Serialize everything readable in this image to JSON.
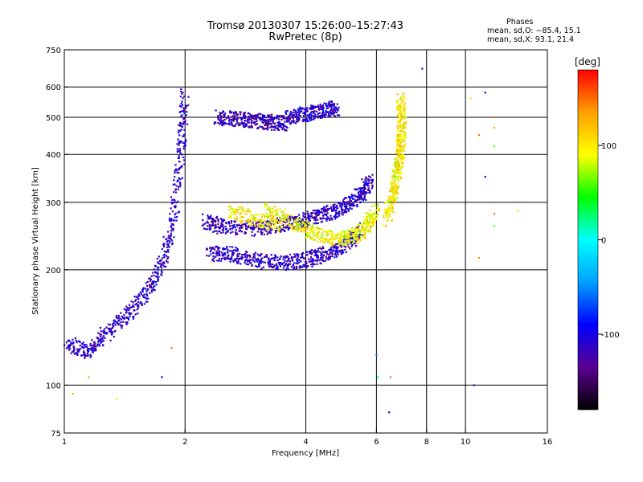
{
  "title": "Tromsø 20130307 15:26:00–15:27:43",
  "subtitle": "RwPretec (8p)",
  "phase_box": {
    "heading": "Phases",
    "line_o": "mean, sd,O: −85.4, 15.1",
    "line_x": "mean, sd,X: 93.1, 21.4"
  },
  "chart_data": {
    "type": "scatter",
    "title": "Tromsø 20130307 15:26:00–15:27:43",
    "subtitle": "RwPretec (8p)",
    "xlabel": "Frequency [MHz]",
    "ylabel": "Stationary phase Virtual Height [km]",
    "x_scale": "log",
    "y_scale": "log",
    "xlim": [
      1,
      16
    ],
    "ylim": [
      75,
      750
    ],
    "x_ticks": [
      1,
      2,
      4,
      6,
      8,
      10,
      16
    ],
    "y_ticks": [
      75,
      100,
      200,
      300,
      400,
      500,
      600,
      750
    ],
    "x_grid_lines": [
      2,
      4,
      6,
      8,
      10
    ],
    "y_grid_lines": [
      100,
      200,
      300,
      400,
      500,
      600
    ],
    "grid": true,
    "colorbar": {
      "label": "[deg]",
      "ticks": [
        100,
        0,
        -100
      ],
      "range": [
        -180,
        180
      ],
      "colors": [
        "#000000",
        "#5a0090",
        "#0000ff",
        "#00a0ff",
        "#00ffff",
        "#00ff00",
        "#ffff00",
        "#ffa000",
        "#ff0000"
      ]
    },
    "traces": [
      {
        "x": [
          1.0,
          1.15,
          1.3,
          1.5,
          1.7,
          1.85,
          1.95,
          2.0
        ],
        "y": [
          130,
          122,
          140,
          160,
          190,
          250,
          400,
          580
        ],
        "phase": -110
      },
      {
        "x": [
          2.25,
          2.5,
          3.0,
          3.5,
          4.0,
          4.5,
          5.0,
          5.5,
          5.8
        ],
        "y": [
          268,
          258,
          256,
          262,
          270,
          280,
          292,
          315,
          345
        ],
        "phase": -115
      },
      {
        "x": [
          2.3,
          2.6,
          3.0,
          3.5,
          4.0,
          4.5,
          5.0,
          5.5
        ],
        "y": [
          220,
          220,
          212,
          208,
          212,
          220,
          232,
          255
        ],
        "phase": -110
      },
      {
        "x": [
          2.4,
          2.7,
          3.0,
          3.3,
          3.6
        ],
        "y": [
          500,
          495,
          490,
          485,
          482
        ],
        "phase": -120
      },
      {
        "x": [
          3.6,
          4.0,
          4.4,
          4.8
        ],
        "y": [
          500,
          510,
          520,
          530
        ],
        "phase": -110
      },
      {
        "x": [
          3.2,
          3.8,
          4.2,
          4.8,
          5.3,
          5.7,
          6.0
        ],
        "y": [
          290,
          262,
          248,
          240,
          245,
          262,
          285
        ],
        "phase": 95
      },
      {
        "x": [
          6.4,
          6.6,
          6.8,
          6.9,
          6.95,
          6.9
        ],
        "y": [
          270,
          320,
          370,
          420,
          480,
          560
        ],
        "phase": 100
      },
      {
        "x": [
          2.6,
          3.0,
          3.5
        ],
        "y": [
          285,
          270,
          262
        ],
        "phase": 100
      }
    ],
    "isolated_points": [
      {
        "x": 1.35,
        "y": 92,
        "phase": 100
      },
      {
        "x": 1.15,
        "y": 105,
        "phase": 130
      },
      {
        "x": 1.05,
        "y": 95,
        "phase": 130
      },
      {
        "x": 1.75,
        "y": 105,
        "phase": -100
      },
      {
        "x": 1.85,
        "y": 125,
        "phase": 150
      },
      {
        "x": 6.45,
        "y": 85,
        "phase": -110
      },
      {
        "x": 6.5,
        "y": 105,
        "phase": 150
      },
      {
        "x": 6.0,
        "y": 120,
        "phase": -60
      },
      {
        "x": 6.05,
        "y": 105,
        "phase": 20
      },
      {
        "x": 7.8,
        "y": 670,
        "phase": -110
      },
      {
        "x": 10.5,
        "y": 100,
        "phase": -110
      },
      {
        "x": 11.2,
        "y": 580,
        "phase": -110
      },
      {
        "x": 11.8,
        "y": 500,
        "phase": 150
      },
      {
        "x": 11.8,
        "y": 470,
        "phase": 130
      },
      {
        "x": 11.8,
        "y": 420,
        "phase": 60
      },
      {
        "x": 11.2,
        "y": 350,
        "phase": -100
      },
      {
        "x": 11.8,
        "y": 280,
        "phase": 150
      },
      {
        "x": 11.8,
        "y": 260,
        "phase": 60
      },
      {
        "x": 10.8,
        "y": 215,
        "phase": 140
      },
      {
        "x": 13.5,
        "y": 285,
        "phase": 110
      },
      {
        "x": 10.3,
        "y": 560,
        "phase": 110
      },
      {
        "x": 10.8,
        "y": 450,
        "phase": 150
      }
    ]
  }
}
